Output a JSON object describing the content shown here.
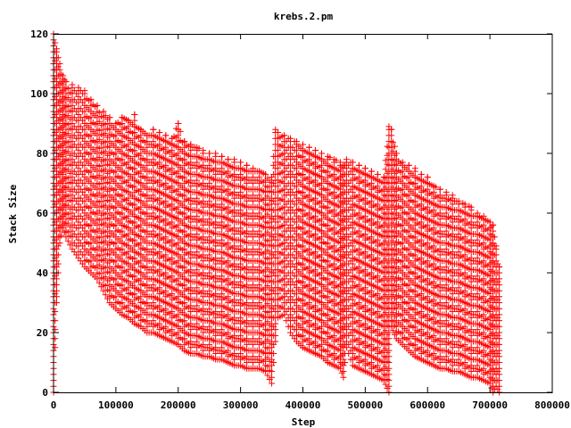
{
  "chart_data": {
    "type": "scatter",
    "title": "krebs.2.pm",
    "xlabel": "Step",
    "ylabel": "Stack Size",
    "xlim": [
      0,
      800000
    ],
    "ylim": [
      0,
      120
    ],
    "x_ticks": [
      "0",
      "100000",
      "200000",
      "300000",
      "400000",
      "500000",
      "600000",
      "700000",
      "800000"
    ],
    "y_ticks": [
      "0",
      "20",
      "40",
      "60",
      "80",
      "100",
      "120"
    ],
    "grid": false,
    "legend": "none",
    "marker": "+",
    "series": [
      {
        "color": "#ff0000",
        "x": [
          0,
          5000,
          10000,
          15000,
          20000,
          30000,
          40000,
          50000,
          60000,
          70000,
          80000,
          90000,
          100000,
          110000,
          120000,
          130000,
          140000,
          150000,
          160000,
          170000,
          180000,
          190000,
          200000,
          210000,
          220000,
          230000,
          240000,
          250000,
          260000,
          270000,
          280000,
          290000,
          300000,
          310000,
          320000,
          330000,
          340000,
          350000,
          356000,
          360000,
          370000,
          380000,
          390000,
          400000,
          410000,
          420000,
          430000,
          440000,
          450000,
          460000,
          465000,
          470000,
          480000,
          490000,
          500000,
          510000,
          520000,
          530000,
          538000,
          542000,
          550000,
          560000,
          570000,
          580000,
          590000,
          600000,
          610000,
          620000,
          630000,
          640000,
          650000,
          660000,
          670000,
          680000,
          690000,
          700000,
          705000,
          710000,
          715000
        ],
        "ymax": [
          120,
          115,
          110,
          106,
          104,
          103,
          102,
          101,
          98,
          96,
          94,
          92,
          90,
          92,
          91,
          93,
          88,
          86,
          88,
          87,
          86,
          85,
          90,
          84,
          83,
          82,
          81,
          80,
          80,
          79,
          78,
          78,
          77,
          76,
          75,
          74,
          73,
          72,
          88,
          87,
          86,
          85,
          84,
          83,
          82,
          81,
          80,
          79,
          78,
          77,
          76,
          78,
          77,
          76,
          75,
          74,
          73,
          72,
          89,
          88,
          80,
          77,
          76,
          75,
          73,
          72,
          69,
          68,
          67,
          66,
          64,
          63,
          62,
          60,
          59,
          57,
          56,
          49,
          42
        ],
        "ymin": [
          0,
          30,
          50,
          55,
          52,
          48,
          45,
          42,
          40,
          38,
          34,
          30,
          28,
          26,
          25,
          23,
          22,
          20,
          20,
          19,
          18,
          17,
          16,
          14,
          13,
          13,
          12,
          12,
          11,
          11,
          10,
          9,
          9,
          8,
          8,
          8,
          7,
          3,
          17,
          25,
          26,
          20,
          17,
          15,
          14,
          13,
          12,
          10,
          9,
          8,
          5,
          15,
          9,
          8,
          7,
          6,
          5,
          4,
          0,
          22,
          18,
          16,
          14,
          12,
          11,
          10,
          9,
          8,
          8,
          7,
          7,
          6,
          5,
          5,
          4,
          3,
          0,
          2,
          0
        ]
      }
    ]
  }
}
